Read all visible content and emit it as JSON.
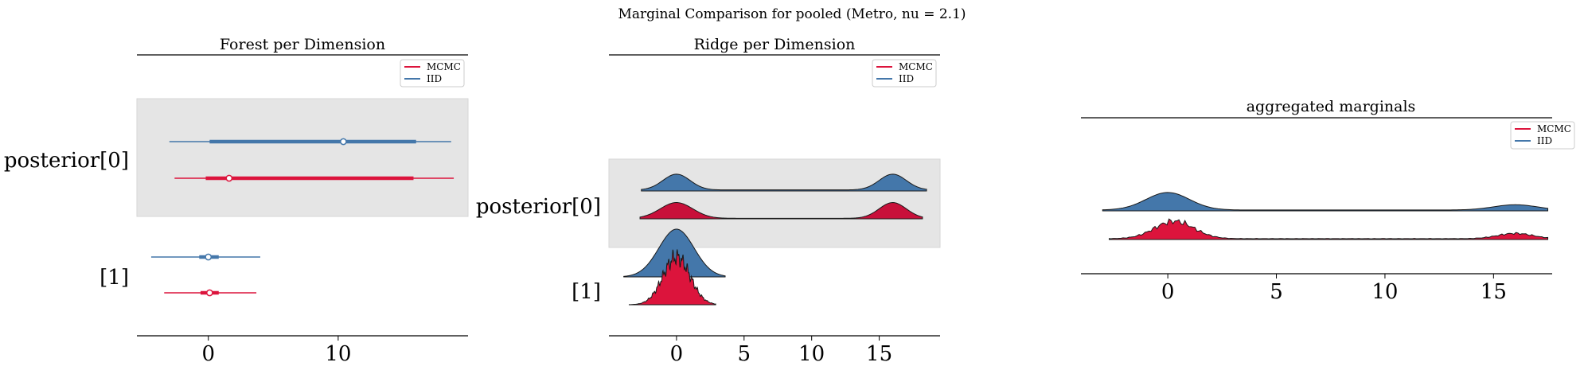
{
  "figure": {
    "suptitle": "Marginal Comparison for pooled (Metro, nu = 2.1)"
  },
  "colors": {
    "mcmc": "#dc143c",
    "mcmc_dark": "#c8103a",
    "iid": "#4477aa",
    "band": "#e5e5e5"
  },
  "legend": {
    "mcmc": "MCMC",
    "iid": "IID"
  },
  "chart_data": [
    {
      "type": "forest",
      "title": "Forest per Dimension",
      "x_ticks": [
        0,
        10
      ],
      "xlim": [
        -5.5,
        20
      ],
      "y_labels": [
        "posterior[0]",
        "[1]"
      ],
      "series": [
        {
          "name": "IID",
          "dimension": "posterior[0]",
          "median": 10.4,
          "hdi_50": [
            0.1,
            16.0
          ],
          "hdi_94": [
            -3.0,
            18.7
          ]
        },
        {
          "name": "MCMC",
          "dimension": "posterior[0]",
          "median": 1.6,
          "hdi_50": [
            -0.2,
            15.8
          ],
          "hdi_94": [
            -2.6,
            18.9
          ]
        },
        {
          "name": "IID",
          "dimension": "[1]",
          "median": 0.0,
          "hdi_50": [
            -0.7,
            0.8
          ],
          "hdi_94": [
            -4.4,
            4.0
          ]
        },
        {
          "name": "MCMC",
          "dimension": "[1]",
          "median": 0.1,
          "hdi_50": [
            -0.6,
            0.8
          ],
          "hdi_94": [
            -3.4,
            3.7
          ]
        }
      ]
    },
    {
      "type": "ridge",
      "title": "Ridge per Dimension",
      "x_ticks": [
        0,
        5,
        10,
        15
      ],
      "xlim": [
        -5,
        19.5
      ],
      "y_labels": [
        "posterior[0]",
        "[1]"
      ],
      "series": [
        {
          "name": "IID",
          "dimension": "posterior[0]",
          "range": [
            -2.6,
            18.5
          ],
          "modes": [
            [
              0,
              1.0,
              0.9
            ],
            [
              16,
              1.0,
              0.9
            ]
          ],
          "baseline": 0.06
        },
        {
          "name": "MCMC",
          "dimension": "posterior[0]",
          "range": [
            -2.7,
            18.2
          ],
          "modes": [
            [
              0,
              1.2,
              0.9
            ],
            [
              16,
              1.0,
              0.9
            ]
          ],
          "baseline": 0.03
        },
        {
          "name": "IID",
          "dimension": "[1]",
          "range": [
            -3.9,
            3.6
          ],
          "modes": [
            [
              0,
              1.3,
              1.0
            ]
          ],
          "baseline": 0.0
        },
        {
          "name": "MCMC",
          "dimension": "[1]",
          "range": [
            -3.5,
            2.9
          ],
          "modes": [
            [
              0,
              1.0,
              1.0
            ]
          ],
          "baseline": 0.0,
          "jagged": true
        }
      ]
    },
    {
      "type": "ridge",
      "title": "aggregated marginals",
      "x_ticks": [
        0,
        5,
        10,
        15
      ],
      "xlim": [
        -4,
        17.7
      ],
      "series": [
        {
          "name": "IID",
          "range": [
            -3.0,
            17.5
          ],
          "modes": [
            [
              0,
              1.0,
              1.0
            ],
            [
              16,
              1.0,
              0.3
            ]
          ],
          "baseline": 0.05
        },
        {
          "name": "MCMC",
          "range": [
            -2.7,
            17.5
          ],
          "modes": [
            [
              0.3,
              0.9,
              1.0
            ],
            [
              16,
              0.8,
              0.3
            ]
          ],
          "baseline": 0.05,
          "jagged": true
        }
      ]
    }
  ]
}
